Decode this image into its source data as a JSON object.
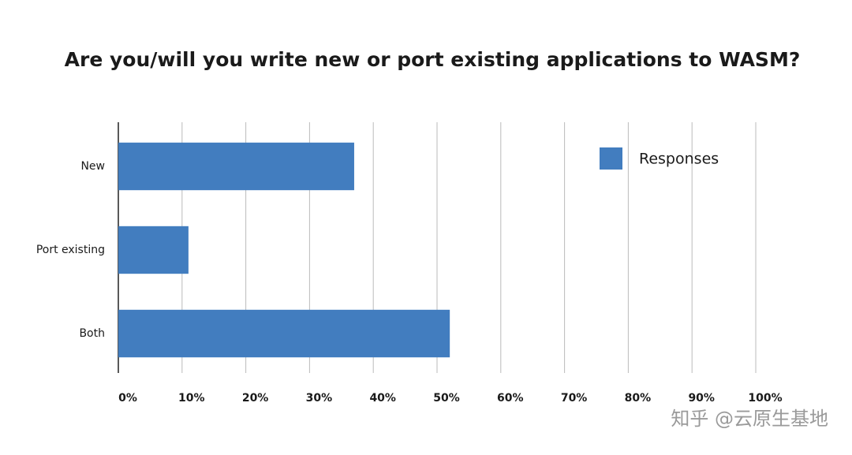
{
  "chart_data": {
    "type": "bar",
    "orientation": "horizontal",
    "title": "Are you/will you write new or port existing applications to WASM?",
    "categories": [
      "New",
      "Port existing",
      "Both"
    ],
    "series": [
      {
        "name": "Responses",
        "color": "#427dbf",
        "values": [
          37,
          11,
          52
        ]
      }
    ],
    "xlim": [
      0,
      100
    ],
    "xticks": [
      {
        "value": 0,
        "label": "0%"
      },
      {
        "value": 10,
        "label": "10%"
      },
      {
        "value": 20,
        "label": "20%"
      },
      {
        "value": 30,
        "label": "30%"
      },
      {
        "value": 40,
        "label": "40%"
      },
      {
        "value": 50,
        "label": "50%"
      },
      {
        "value": 60,
        "label": "60%"
      },
      {
        "value": 70,
        "label": "70%"
      },
      {
        "value": 80,
        "label": "80%"
      },
      {
        "value": 90,
        "label": "90%"
      },
      {
        "value": 100,
        "label": "100%"
      }
    ],
    "grid": true,
    "legend": "upper right"
  },
  "watermark": "知乎 @云原生基地"
}
